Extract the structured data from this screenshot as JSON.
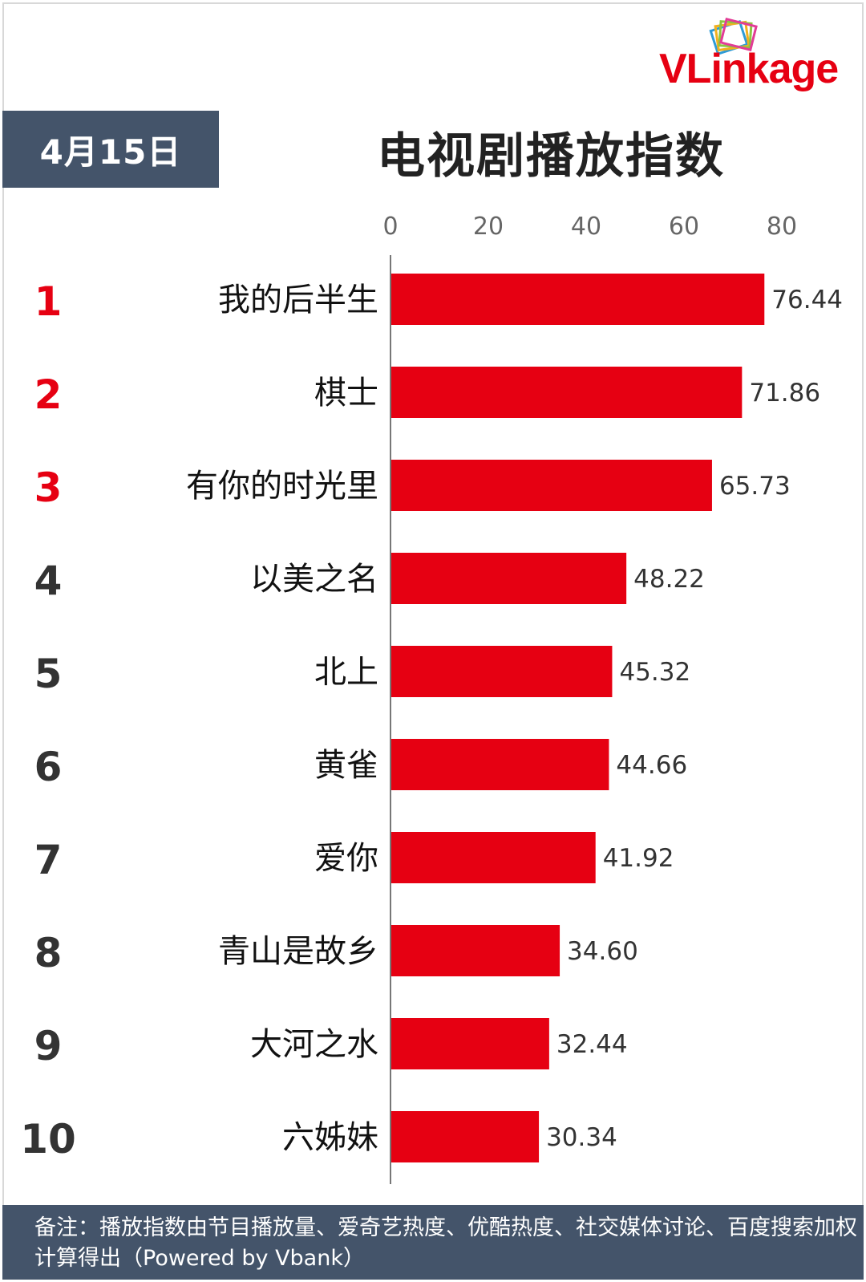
{
  "header": {
    "date": "4月15日",
    "title": "电视剧播放指数",
    "logo_text": "VLinkage"
  },
  "footer": {
    "note": "备注：播放指数由节目播放量、爱奇艺热度、优酷热度、社交媒体讨论、百度搜索加权计算得出（Powered by Vbank）"
  },
  "colors": {
    "bar": "#e60012",
    "rank_top": "#e60012",
    "rank_other": "#333333",
    "header_bg": "#44546a",
    "axis_text": "#666666"
  },
  "chart_data": {
    "type": "bar",
    "orientation": "horizontal",
    "title": "电视剧播放指数",
    "xlim": [
      0,
      80
    ],
    "ticks": [
      "0",
      "20",
      "40",
      "60",
      "80"
    ],
    "grid": false,
    "ranks": [
      "1",
      "2",
      "3",
      "4",
      "5",
      "6",
      "7",
      "8",
      "9",
      "10"
    ],
    "categories": [
      "我的后半生",
      "棋士",
      "有你的时光里",
      "以美之名",
      "北上",
      "黄雀",
      "爱你",
      "青山是故乡",
      "大河之水",
      "六姊妹"
    ],
    "values": [
      76.44,
      71.86,
      65.73,
      48.22,
      45.32,
      44.66,
      41.92,
      34.6,
      32.44,
      30.34
    ],
    "value_labels": [
      "76.44",
      "71.86",
      "65.73",
      "48.22",
      "45.32",
      "44.66",
      "41.92",
      "34.60",
      "32.44",
      "30.34"
    ]
  }
}
